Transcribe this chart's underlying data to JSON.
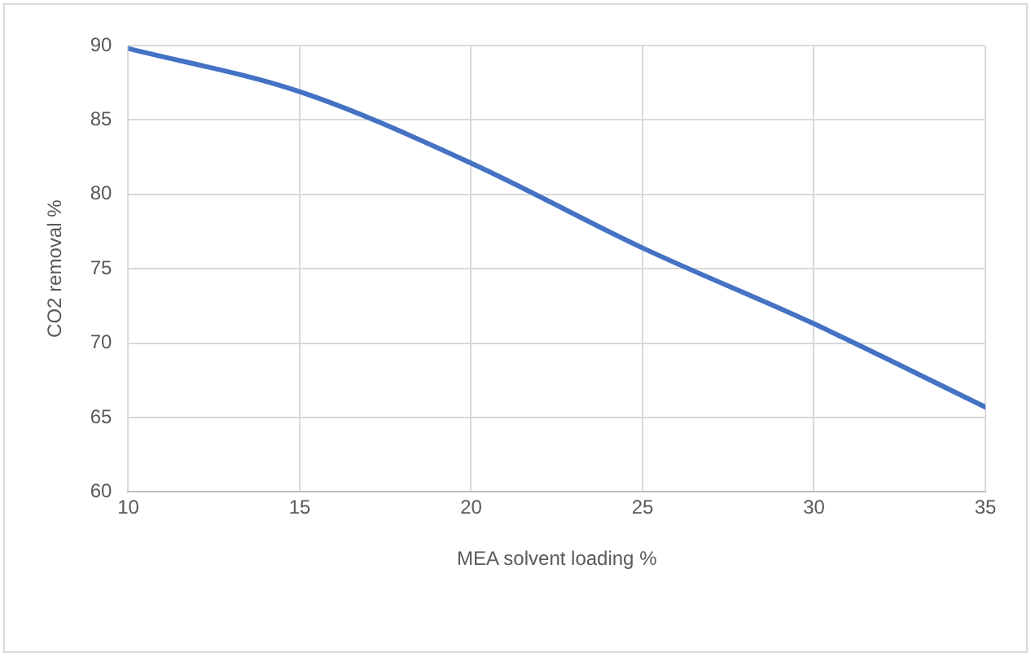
{
  "chart_data": {
    "type": "line",
    "xlabel": "MEA solvent loading %",
    "ylabel": "CO2 removal %",
    "x": [
      10,
      15,
      20,
      25,
      30,
      35
    ],
    "series": [
      {
        "color": "#4472c4",
        "values": [
          89.8,
          86.9,
          82.1,
          76.4,
          71.3,
          65.7
        ]
      }
    ],
    "xlim": [
      10,
      35
    ],
    "xticks": [
      10,
      15,
      20,
      25,
      30,
      35
    ],
    "ylim": [
      60,
      90
    ],
    "yticks": [
      60,
      65,
      70,
      75,
      80,
      85,
      90
    ],
    "grid": true,
    "legend": false,
    "marker": "none",
    "line_style": "solid"
  }
}
